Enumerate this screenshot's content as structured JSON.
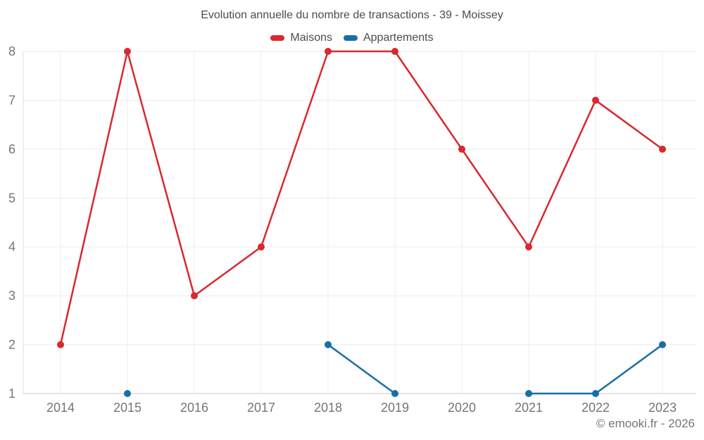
{
  "header": {
    "title": "Evolution annuelle du nombre de transactions - 39 - Moissey"
  },
  "footer": {
    "copyright": "© emooki.fr - 2026"
  },
  "chart_data": {
    "type": "line",
    "title": "Evolution annuelle du nombre de transactions - 39 - Moissey",
    "categories": [
      "2014",
      "2015",
      "2016",
      "2017",
      "2018",
      "2019",
      "2020",
      "2021",
      "2022",
      "2023"
    ],
    "series": [
      {
        "name": "Maisons",
        "color": "#d9282e",
        "values": [
          2,
          8,
          3,
          4,
          8,
          8,
          6,
          4,
          7,
          6
        ]
      },
      {
        "name": "Appartements",
        "color": "#176fa8",
        "values": [
          null,
          1,
          null,
          null,
          2,
          1,
          null,
          1,
          1,
          2
        ]
      }
    ],
    "xlabel": "",
    "ylabel": "",
    "ylim": [
      1,
      8
    ],
    "y_ticks": [
      1,
      2,
      3,
      4,
      5,
      6,
      7,
      8
    ],
    "grid": true,
    "legend_position": "top",
    "marker_radius": 5,
    "line_width": 2.5
  },
  "colors": {
    "grid": "#ececec",
    "axis_bottom": "#c9c9c9",
    "axis_left": "#e0e0e0",
    "tick_label": "#757575",
    "title_text": "#4c4c4c"
  }
}
